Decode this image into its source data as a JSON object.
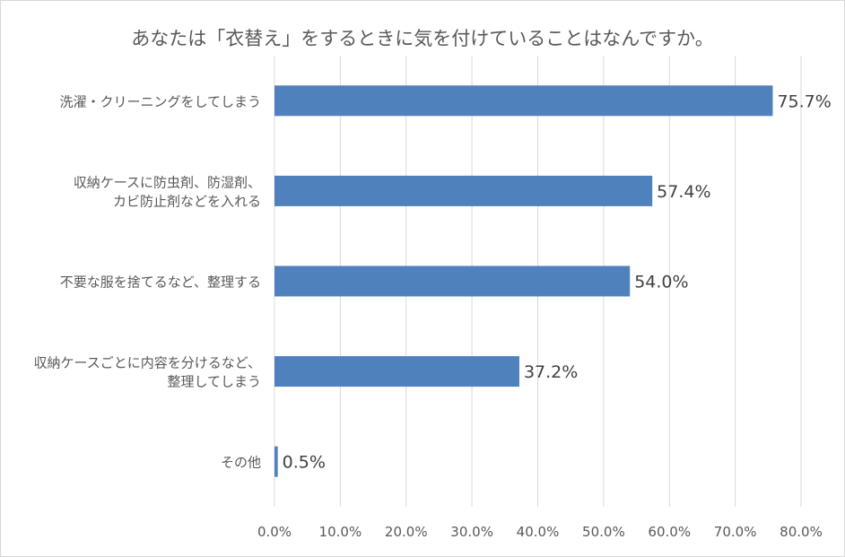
{
  "chart_data": {
    "type": "bar",
    "orientation": "horizontal",
    "title": "あなたは「衣替え」をするときに気を付けていることはなんですか。",
    "categories": [
      [
        "洗濯・クリーニングをしてしまう"
      ],
      [
        "収納ケースに防虫剤、防湿剤、",
        "カビ防止剤などを入れる"
      ],
      [
        "不要な服を捨てるなど、整理する"
      ],
      [
        "収納ケースごとに内容を分けるなど、",
        "整理してしまう"
      ],
      [
        "その他"
      ]
    ],
    "values": [
      75.7,
      57.4,
      54.0,
      37.2,
      0.5
    ],
    "data_labels": [
      "75.7%",
      "57.4%",
      "54.0%",
      "37.2%",
      "0.5%"
    ],
    "xlim": [
      0,
      80
    ],
    "x_ticks": [
      "0.0%",
      "10.0%",
      "20.0%",
      "30.0%",
      "40.0%",
      "50.0%",
      "60.0%",
      "70.0%",
      "80.0%"
    ],
    "grid": "vertical",
    "bar_color": "#4f81bd",
    "grid_color": "#d9d9d9",
    "text_color": "#595959"
  }
}
